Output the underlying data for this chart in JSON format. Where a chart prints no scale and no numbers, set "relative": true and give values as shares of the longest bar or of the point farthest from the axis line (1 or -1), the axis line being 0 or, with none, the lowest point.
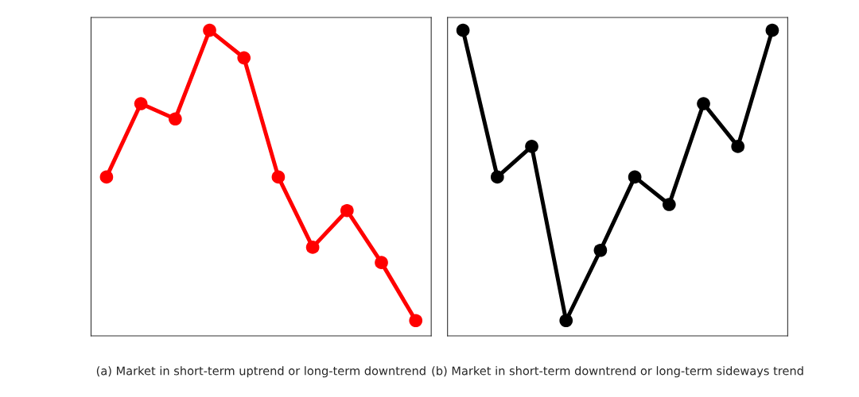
{
  "chart_data": [
    {
      "type": "line",
      "relative": true,
      "xlabel": "(a) Market in short-term uptrend or long-term downtrend",
      "categories": [
        null,
        null,
        null,
        null,
        null,
        null,
        null,
        null,
        null,
        null
      ],
      "marker": "circle",
      "line_style": "solid",
      "grid": false,
      "legend": false,
      "series": [
        {
          "color": "#ff0000",
          "values": [
            0.52,
            0.76,
            0.71,
            1,
            0.91,
            0.52,
            0.29,
            0.41,
            0.24,
            0.05
          ]
        }
      ]
    },
    {
      "type": "line",
      "relative": true,
      "xlabel": "(b) Market in short-term downtrend or long-term sideways trend",
      "categories": [
        null,
        null,
        null,
        null,
        null,
        null,
        null,
        null,
        null,
        null
      ],
      "marker": "circle",
      "line_style": "solid",
      "grid": false,
      "legend": false,
      "series": [
        {
          "color": "#000000",
          "values": [
            1,
            0.52,
            0.62,
            0.05,
            0.28,
            0.52,
            0.43,
            0.76,
            0.62,
            1
          ]
        }
      ]
    }
  ]
}
